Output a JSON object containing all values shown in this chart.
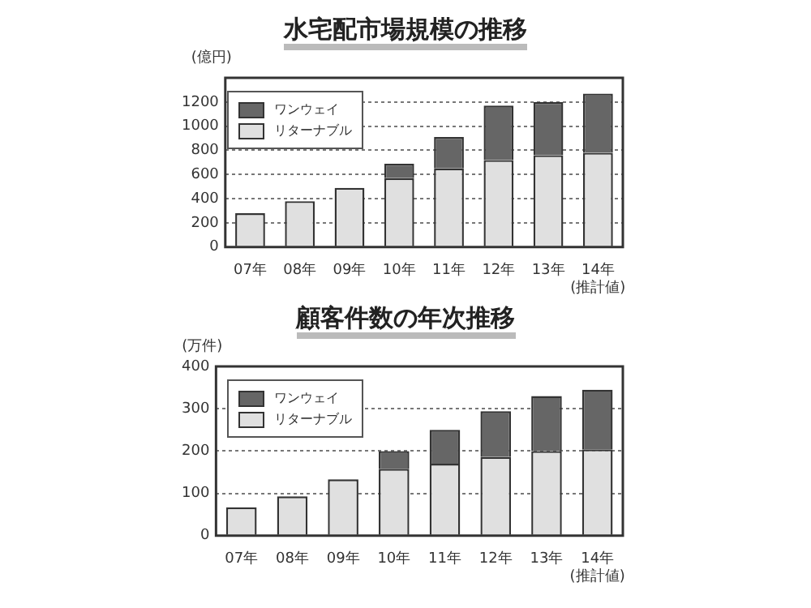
{
  "chart_data": [
    {
      "type": "bar",
      "title": "水宅配市場規模の推移",
      "ylabel": "(億円)",
      "categories": [
        "07年",
        "08年",
        "09年",
        "10年",
        "11年",
        "12年",
        "13年",
        "14年\n(推計値)"
      ],
      "stacked": true,
      "ylim": [
        0,
        1400
      ],
      "yticks": [
        0,
        200,
        400,
        600,
        800,
        {
          "value": 1000,
          "label": "1000"
        },
        {
          "value": 1200,
          "label": "1200"
        }
      ],
      "grid": "y",
      "legend": "top left",
      "series": [
        {
          "name": "リターナブル",
          "color": "#e0e0e0",
          "values": [
            280,
            380,
            490,
            570,
            650,
            720,
            760,
            780
          ]
        },
        {
          "name": "ワンウェイ",
          "color": "#666666",
          "values": [
            null,
            null,
            null,
            120,
            260,
            450,
            440,
            490
          ]
        }
      ]
    },
    {
      "type": "bar",
      "title": "顧客件数の年次推移",
      "ylabel": "(万件)",
      "categories": [
        "07年",
        "08年",
        "09年",
        "10年",
        "11年",
        "12年",
        "13年",
        "14年\n(推計値)"
      ],
      "stacked": true,
      "ylim": [
        0,
        400
      ],
      "yticks": [
        0,
        100,
        200,
        300,
        400
      ],
      "grid": "y",
      "legend": "top left",
      "series": [
        {
          "name": "リターナブル",
          "color": "#e0e0e0",
          "values": [
            67,
            93,
            133,
            158,
            170,
            186,
            200,
            204
          ]
        },
        {
          "name": "ワンウェイ",
          "color": "#666666",
          "values": [
            null,
            null,
            null,
            42,
            80,
            108,
            130,
            141
          ]
        }
      ]
    }
  ]
}
